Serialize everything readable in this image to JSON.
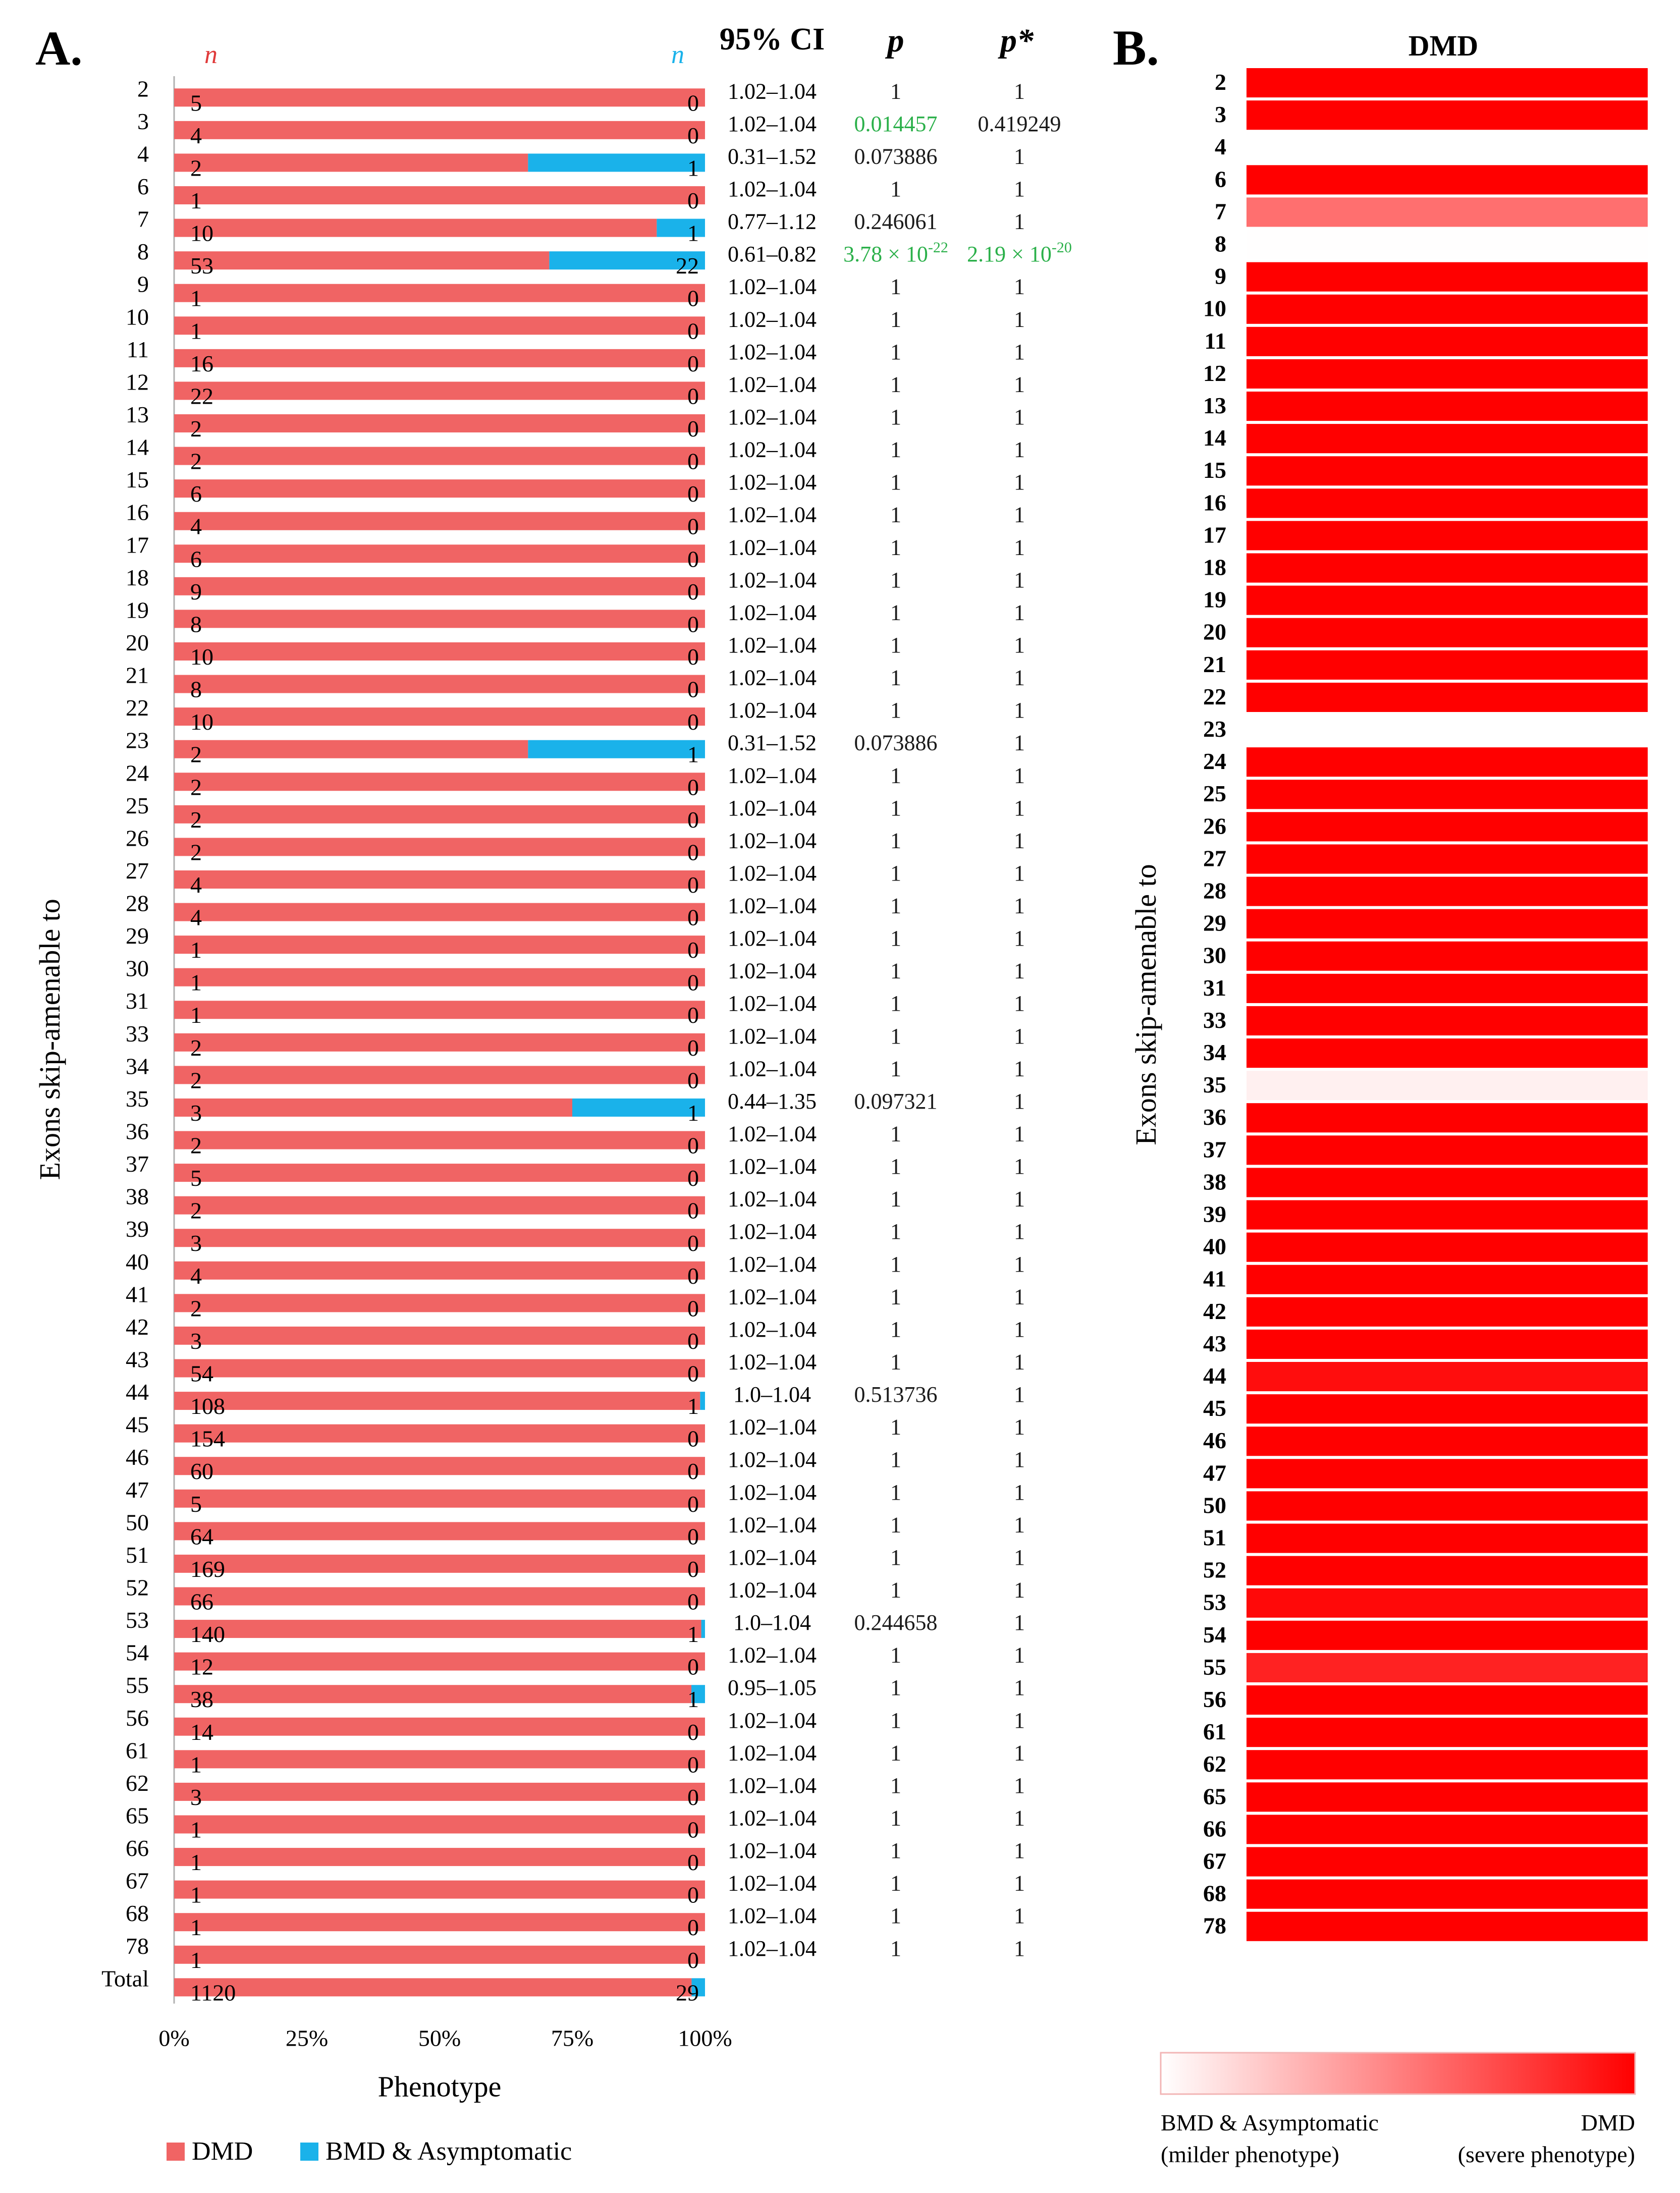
{
  "panel_a": {
    "label": "A.",
    "n_left": "n",
    "n_right": "n",
    "col_ci": "95% CI",
    "col_p": "p",
    "col_pstar": "p*"
  },
  "panel_b": {
    "label": "B.",
    "column_header": "DMD",
    "ylabel": "Exons skip-amenable to",
    "scale_left_1": "BMD & Asymptomatic",
    "scale_left_2": "(milder phenotype)",
    "scale_right_1": "DMD",
    "scale_right_2": "(severe phenotype)"
  },
  "colors": {
    "dmd": "#f06464",
    "bmd": "#1ab2ea",
    "significant": "#2bb04a",
    "heat_max": "#ff0000",
    "heat_min": "#ffffff"
  },
  "chart_data": [
    {
      "type": "bar",
      "stacked": true,
      "orientation": "horizontal",
      "percent": true,
      "xlabel": "Phenotype",
      "ylabel": "Exons skip-amenable to",
      "xlim": [
        0,
        100
      ],
      "xticks": [
        "0%",
        "25%",
        "50%",
        "75%",
        "100%"
      ],
      "legend_position": "bottom",
      "series": [
        {
          "name": "DMD"
        },
        {
          "name": "BMD & Asymptomatic"
        }
      ],
      "rows": [
        {
          "exon": "2",
          "dmd": 5,
          "bmd": 0,
          "ci": "1.02–1.04",
          "p": "1",
          "pstar": "1"
        },
        {
          "exon": "3",
          "dmd": 4,
          "bmd": 0,
          "ci": "1.02–1.04",
          "p": "0.014457",
          "pstar": "0.419249",
          "p_sig": true
        },
        {
          "exon": "4",
          "dmd": 2,
          "bmd": 1,
          "ci": "0.31–1.52",
          "p": "0.073886",
          "pstar": "1"
        },
        {
          "exon": "6",
          "dmd": 1,
          "bmd": 0,
          "ci": "1.02–1.04",
          "p": "1",
          "pstar": "1"
        },
        {
          "exon": "7",
          "dmd": 10,
          "bmd": 1,
          "ci": "0.77–1.12",
          "p": "0.246061",
          "pstar": "1"
        },
        {
          "exon": "8",
          "dmd": 53,
          "bmd": 22,
          "ci": "0.61–0.82",
          "p": "3.78 × 10",
          "p_exp": "-22",
          "pstar": "2.19 × 10",
          "pstar_exp": "-20",
          "p_sig": true,
          "pstar_sig": true
        },
        {
          "exon": "9",
          "dmd": 1,
          "bmd": 0,
          "ci": "1.02–1.04",
          "p": "1",
          "pstar": "1"
        },
        {
          "exon": "10",
          "dmd": 1,
          "bmd": 0,
          "ci": "1.02–1.04",
          "p": "1",
          "pstar": "1"
        },
        {
          "exon": "11",
          "dmd": 16,
          "bmd": 0,
          "ci": "1.02–1.04",
          "p": "1",
          "pstar": "1"
        },
        {
          "exon": "12",
          "dmd": 22,
          "bmd": 0,
          "ci": "1.02–1.04",
          "p": "1",
          "pstar": "1"
        },
        {
          "exon": "13",
          "dmd": 2,
          "bmd": 0,
          "ci": "1.02–1.04",
          "p": "1",
          "pstar": "1"
        },
        {
          "exon": "14",
          "dmd": 2,
          "bmd": 0,
          "ci": "1.02–1.04",
          "p": "1",
          "pstar": "1"
        },
        {
          "exon": "15",
          "dmd": 6,
          "bmd": 0,
          "ci": "1.02–1.04",
          "p": "1",
          "pstar": "1"
        },
        {
          "exon": "16",
          "dmd": 4,
          "bmd": 0,
          "ci": "1.02–1.04",
          "p": "1",
          "pstar": "1"
        },
        {
          "exon": "17",
          "dmd": 6,
          "bmd": 0,
          "ci": "1.02–1.04",
          "p": "1",
          "pstar": "1"
        },
        {
          "exon": "18",
          "dmd": 9,
          "bmd": 0,
          "ci": "1.02–1.04",
          "p": "1",
          "pstar": "1"
        },
        {
          "exon": "19",
          "dmd": 8,
          "bmd": 0,
          "ci": "1.02–1.04",
          "p": "1",
          "pstar": "1"
        },
        {
          "exon": "20",
          "dmd": 10,
          "bmd": 0,
          "ci": "1.02–1.04",
          "p": "1",
          "pstar": "1"
        },
        {
          "exon": "21",
          "dmd": 8,
          "bmd": 0,
          "ci": "1.02–1.04",
          "p": "1",
          "pstar": "1"
        },
        {
          "exon": "22",
          "dmd": 10,
          "bmd": 0,
          "ci": "1.02–1.04",
          "p": "1",
          "pstar": "1"
        },
        {
          "exon": "23",
          "dmd": 2,
          "bmd": 1,
          "ci": "0.31–1.52",
          "p": "0.073886",
          "pstar": "1"
        },
        {
          "exon": "24",
          "dmd": 2,
          "bmd": 0,
          "ci": "1.02–1.04",
          "p": "1",
          "pstar": "1"
        },
        {
          "exon": "25",
          "dmd": 2,
          "bmd": 0,
          "ci": "1.02–1.04",
          "p": "1",
          "pstar": "1"
        },
        {
          "exon": "26",
          "dmd": 2,
          "bmd": 0,
          "ci": "1.02–1.04",
          "p": "1",
          "pstar": "1"
        },
        {
          "exon": "27",
          "dmd": 4,
          "bmd": 0,
          "ci": "1.02–1.04",
          "p": "1",
          "pstar": "1"
        },
        {
          "exon": "28",
          "dmd": 4,
          "bmd": 0,
          "ci": "1.02–1.04",
          "p": "1",
          "pstar": "1"
        },
        {
          "exon": "29",
          "dmd": 1,
          "bmd": 0,
          "ci": "1.02–1.04",
          "p": "1",
          "pstar": "1"
        },
        {
          "exon": "30",
          "dmd": 1,
          "bmd": 0,
          "ci": "1.02–1.04",
          "p": "1",
          "pstar": "1"
        },
        {
          "exon": "31",
          "dmd": 1,
          "bmd": 0,
          "ci": "1.02–1.04",
          "p": "1",
          "pstar": "1"
        },
        {
          "exon": "33",
          "dmd": 2,
          "bmd": 0,
          "ci": "1.02–1.04",
          "p": "1",
          "pstar": "1"
        },
        {
          "exon": "34",
          "dmd": 2,
          "bmd": 0,
          "ci": "1.02–1.04",
          "p": "1",
          "pstar": "1"
        },
        {
          "exon": "35",
          "dmd": 3,
          "bmd": 1,
          "ci": "0.44–1.35",
          "p": "0.097321",
          "pstar": "1"
        },
        {
          "exon": "36",
          "dmd": 2,
          "bmd": 0,
          "ci": "1.02–1.04",
          "p": "1",
          "pstar": "1"
        },
        {
          "exon": "37",
          "dmd": 5,
          "bmd": 0,
          "ci": "1.02–1.04",
          "p": "1",
          "pstar": "1"
        },
        {
          "exon": "38",
          "dmd": 2,
          "bmd": 0,
          "ci": "1.02–1.04",
          "p": "1",
          "pstar": "1"
        },
        {
          "exon": "39",
          "dmd": 3,
          "bmd": 0,
          "ci": "1.02–1.04",
          "p": "1",
          "pstar": "1"
        },
        {
          "exon": "40",
          "dmd": 4,
          "bmd": 0,
          "ci": "1.02–1.04",
          "p": "1",
          "pstar": "1"
        },
        {
          "exon": "41",
          "dmd": 2,
          "bmd": 0,
          "ci": "1.02–1.04",
          "p": "1",
          "pstar": "1"
        },
        {
          "exon": "42",
          "dmd": 3,
          "bmd": 0,
          "ci": "1.02–1.04",
          "p": "1",
          "pstar": "1"
        },
        {
          "exon": "43",
          "dmd": 54,
          "bmd": 0,
          "ci": "1.02–1.04",
          "p": "1",
          "pstar": "1"
        },
        {
          "exon": "44",
          "dmd": 108,
          "bmd": 1,
          "ci": "1.0–1.04",
          "p": "0.513736",
          "pstar": "1"
        },
        {
          "exon": "45",
          "dmd": 154,
          "bmd": 0,
          "ci": "1.02–1.04",
          "p": "1",
          "pstar": "1"
        },
        {
          "exon": "46",
          "dmd": 60,
          "bmd": 0,
          "ci": "1.02–1.04",
          "p": "1",
          "pstar": "1"
        },
        {
          "exon": "47",
          "dmd": 5,
          "bmd": 0,
          "ci": "1.02–1.04",
          "p": "1",
          "pstar": "1"
        },
        {
          "exon": "50",
          "dmd": 64,
          "bmd": 0,
          "ci": "1.02–1.04",
          "p": "1",
          "pstar": "1"
        },
        {
          "exon": "51",
          "dmd": 169,
          "bmd": 0,
          "ci": "1.02–1.04",
          "p": "1",
          "pstar": "1"
        },
        {
          "exon": "52",
          "dmd": 66,
          "bmd": 0,
          "ci": "1.02–1.04",
          "p": "1",
          "pstar": "1"
        },
        {
          "exon": "53",
          "dmd": 140,
          "bmd": 1,
          "ci": "1.0–1.04",
          "p": "0.244658",
          "pstar": "1"
        },
        {
          "exon": "54",
          "dmd": 12,
          "bmd": 0,
          "ci": "1.02–1.04",
          "p": "1",
          "pstar": "1"
        },
        {
          "exon": "55",
          "dmd": 38,
          "bmd": 1,
          "ci": "0.95–1.05",
          "p": "1",
          "pstar": "1"
        },
        {
          "exon": "56",
          "dmd": 14,
          "bmd": 0,
          "ci": "1.02–1.04",
          "p": "1",
          "pstar": "1"
        },
        {
          "exon": "61",
          "dmd": 1,
          "bmd": 0,
          "ci": "1.02–1.04",
          "p": "1",
          "pstar": "1"
        },
        {
          "exon": "62",
          "dmd": 3,
          "bmd": 0,
          "ci": "1.02–1.04",
          "p": "1",
          "pstar": "1"
        },
        {
          "exon": "65",
          "dmd": 1,
          "bmd": 0,
          "ci": "1.02–1.04",
          "p": "1",
          "pstar": "1"
        },
        {
          "exon": "66",
          "dmd": 1,
          "bmd": 0,
          "ci": "1.02–1.04",
          "p": "1",
          "pstar": "1"
        },
        {
          "exon": "67",
          "dmd": 1,
          "bmd": 0,
          "ci": "1.02–1.04",
          "p": "1",
          "pstar": "1"
        },
        {
          "exon": "68",
          "dmd": 1,
          "bmd": 0,
          "ci": "1.02–1.04",
          "p": "1",
          "pstar": "1"
        },
        {
          "exon": "78",
          "dmd": 1,
          "bmd": 0,
          "ci": "1.02–1.04",
          "p": "1",
          "pstar": "1"
        },
        {
          "exon": "Total",
          "dmd": 1120,
          "bmd": 29
        }
      ]
    },
    {
      "type": "heatmap",
      "column": "DMD",
      "ylabel": "Exons skip-amenable to",
      "scale_min_label": "BMD & Asymptomatic (milder phenotype)",
      "scale_max_label": "DMD (severe phenotype)",
      "rows": [
        {
          "exon": "2",
          "value": 1.0
        },
        {
          "exon": "3",
          "value": 1.0
        },
        {
          "exon": "4",
          "value": 0.667,
          "blank": true
        },
        {
          "exon": "6",
          "value": 1.0
        },
        {
          "exon": "7",
          "value": 0.91
        },
        {
          "exon": "8",
          "value": 0.707
        },
        {
          "exon": "9",
          "value": 1.0
        },
        {
          "exon": "10",
          "value": 1.0
        },
        {
          "exon": "11",
          "value": 1.0
        },
        {
          "exon": "12",
          "value": 1.0
        },
        {
          "exon": "13",
          "value": 1.0
        },
        {
          "exon": "14",
          "value": 1.0
        },
        {
          "exon": "15",
          "value": 1.0
        },
        {
          "exon": "16",
          "value": 1.0
        },
        {
          "exon": "17",
          "value": 1.0
        },
        {
          "exon": "18",
          "value": 1.0
        },
        {
          "exon": "19",
          "value": 1.0
        },
        {
          "exon": "20",
          "value": 1.0
        },
        {
          "exon": "21",
          "value": 1.0
        },
        {
          "exon": "22",
          "value": 1.0
        },
        {
          "exon": "23",
          "value": 0.667,
          "blank": true
        },
        {
          "exon": "24",
          "value": 1.0
        },
        {
          "exon": "25",
          "value": 1.0
        },
        {
          "exon": "26",
          "value": 1.0
        },
        {
          "exon": "27",
          "value": 1.0
        },
        {
          "exon": "28",
          "value": 1.0
        },
        {
          "exon": "29",
          "value": 1.0
        },
        {
          "exon": "30",
          "value": 1.0
        },
        {
          "exon": "31",
          "value": 1.0
        },
        {
          "exon": "33",
          "value": 1.0
        },
        {
          "exon": "34",
          "value": 1.0
        },
        {
          "exon": "35",
          "value": 0.75
        },
        {
          "exon": "36",
          "value": 1.0
        },
        {
          "exon": "37",
          "value": 1.0
        },
        {
          "exon": "38",
          "value": 1.0
        },
        {
          "exon": "39",
          "value": 1.0
        },
        {
          "exon": "40",
          "value": 1.0
        },
        {
          "exon": "41",
          "value": 1.0
        },
        {
          "exon": "42",
          "value": 1.0
        },
        {
          "exon": "43",
          "value": 1.0
        },
        {
          "exon": "44",
          "value": 0.99
        },
        {
          "exon": "45",
          "value": 1.0
        },
        {
          "exon": "46",
          "value": 1.0
        },
        {
          "exon": "47",
          "value": 1.0
        },
        {
          "exon": "50",
          "value": 1.0
        },
        {
          "exon": "51",
          "value": 1.0
        },
        {
          "exon": "52",
          "value": 1.0
        },
        {
          "exon": "53",
          "value": 0.993
        },
        {
          "exon": "54",
          "value": 1.0
        },
        {
          "exon": "55",
          "value": 0.974
        },
        {
          "exon": "56",
          "value": 1.0
        },
        {
          "exon": "61",
          "value": 1.0
        },
        {
          "exon": "62",
          "value": 1.0
        },
        {
          "exon": "65",
          "value": 1.0
        },
        {
          "exon": "66",
          "value": 1.0
        },
        {
          "exon": "67",
          "value": 1.0
        },
        {
          "exon": "68",
          "value": 1.0
        },
        {
          "exon": "78",
          "value": 1.0
        }
      ]
    }
  ]
}
